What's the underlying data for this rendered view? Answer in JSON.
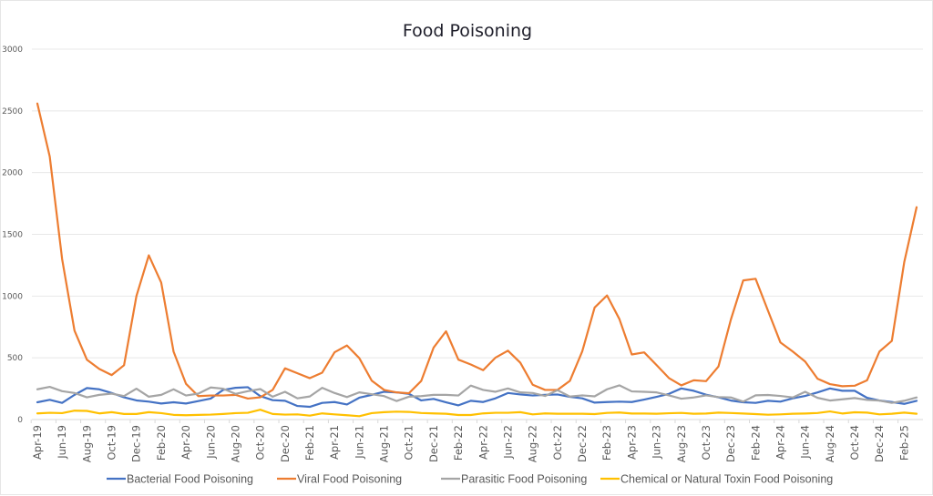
{
  "chart_data": {
    "type": "line",
    "title": "Food Poisoning",
    "xlabel": "",
    "ylabel": "",
    "ylim": [
      0,
      3000
    ],
    "yticks": [
      0,
      500,
      1000,
      1500,
      2000,
      2500,
      3000
    ],
    "grid": true,
    "legend_position": "bottom",
    "x": [
      "Apr-19",
      "May-19",
      "Jun-19",
      "Jul-19",
      "Aug-19",
      "Sep-19",
      "Oct-19",
      "Nov-19",
      "Dec-19",
      "Jan-20",
      "Feb-20",
      "Mar-20",
      "Apr-20",
      "May-20",
      "Jun-20",
      "Jul-20",
      "Aug-20",
      "Sep-20",
      "Oct-20",
      "Nov-20",
      "Dec-20",
      "Jan-21",
      "Feb-21",
      "Mar-21",
      "Apr-21",
      "May-21",
      "Jun-21",
      "Jul-21",
      "Aug-21",
      "Sep-21",
      "Oct-21",
      "Nov-21",
      "Dec-21",
      "Jan-22",
      "Feb-22",
      "Mar-22",
      "Apr-22",
      "May-22",
      "Jun-22",
      "Jul-22",
      "Aug-22",
      "Sep-22",
      "Oct-22",
      "Nov-22",
      "Dec-22",
      "Jan-23",
      "Feb-23",
      "Mar-23",
      "Apr-23",
      "May-23",
      "Jun-23",
      "Jul-23",
      "Aug-23",
      "Sep-23",
      "Oct-23",
      "Nov-23",
      "Dec-23",
      "Jan-24",
      "Feb-24",
      "Mar-24",
      "Apr-24",
      "May-24",
      "Jun-24",
      "Jul-24",
      "Aug-24",
      "Sep-24",
      "Oct-24",
      "Nov-24",
      "Dec-24",
      "Jan-25",
      "Feb-25",
      "Mar-25"
    ],
    "xtick_labels": [
      "Apr-19",
      "Jun-19",
      "Aug-19",
      "Oct-19",
      "Dec-19",
      "Feb-20",
      "Apr-20",
      "Jun-20",
      "Aug-20",
      "Oct-20",
      "Dec-20",
      "Feb-21",
      "Apr-21",
      "Jun-21",
      "Aug-21",
      "Oct-21",
      "Dec-21",
      "Feb-22",
      "Apr-22",
      "Jun-22",
      "Aug-22",
      "Oct-22",
      "Dec-22",
      "Feb-23",
      "Apr-23",
      "Jun-23",
      "Aug-23",
      "Oct-23",
      "Dec-23",
      "Feb-24",
      "Apr-24",
      "Jun-24",
      "Aug-24",
      "Oct-24",
      "Dec-24",
      "Feb-25"
    ],
    "series": [
      {
        "name": "Bacterial Food Poisoning",
        "color": "#4472C4",
        "values": [
          140,
          160,
          135,
          200,
          255,
          245,
          215,
          180,
          155,
          145,
          130,
          140,
          130,
          150,
          170,
          240,
          257,
          262,
          190,
          157,
          152,
          110,
          103,
          135,
          142,
          122,
          177,
          200,
          225,
          220,
          208,
          155,
          167,
          140,
          115,
          152,
          142,
          172,
          215,
          203,
          195,
          200,
          203,
          184,
          172,
          137,
          142,
          145,
          142,
          162,
          184,
          208,
          252,
          233,
          201,
          180,
          154,
          140,
          135,
          152,
          145,
          172,
          191,
          220,
          252,
          233,
          233,
          176,
          154,
          142,
          127,
          152
        ]
      },
      {
        "name": "Viral Food Poisoning",
        "color": "#ED7D31",
        "values": [
          2560,
          2130,
          1300,
          720,
          485,
          410,
          360,
          440,
          1000,
          1330,
          1110,
          550,
          290,
          190,
          195,
          195,
          200,
          170,
          180,
          240,
          415,
          375,
          335,
          380,
          545,
          600,
          497,
          315,
          240,
          220,
          213,
          313,
          583,
          715,
          485,
          446,
          400,
          502,
          558,
          460,
          282,
          240,
          240,
          313,
          552,
          907,
          1005,
          814,
          527,
          544,
          441,
          336,
          277,
          318,
          311,
          430,
          809,
          1127,
          1140,
          882,
          625,
          551,
          470,
          331,
          287,
          270,
          274,
          318,
          551,
          637,
          1274,
          1720
        ]
      },
      {
        "name": "Parasitic Food Poisoning",
        "color": "#A5A5A5",
        "values": [
          245,
          265,
          230,
          215,
          180,
          200,
          210,
          190,
          250,
          185,
          200,
          245,
          195,
          210,
          260,
          250,
          208,
          230,
          247,
          185,
          225,
          172,
          187,
          257,
          215,
          182,
          220,
          205,
          190,
          150,
          185,
          190,
          200,
          200,
          195,
          275,
          240,
          225,
          252,
          220,
          215,
          191,
          238,
          186,
          196,
          188,
          245,
          277,
          228,
          225,
          220,
          196,
          169,
          179,
          196,
          182,
          179,
          145,
          196,
          199,
          191,
          179,
          225,
          176,
          154,
          164,
          174,
          159,
          154,
          135,
          152,
          179
        ]
      },
      {
        "name": "Chemical or Natural Toxin Food Poisoning",
        "color": "#FFC000",
        "values": [
          50,
          55,
          52,
          72,
          70,
          50,
          60,
          45,
          45,
          60,
          52,
          38,
          35,
          38,
          40,
          45,
          52,
          55,
          80,
          45,
          40,
          42,
          32,
          50,
          42,
          35,
          27,
          52,
          60,
          64,
          62,
          53,
          50,
          47,
          37,
          37,
          50,
          55,
          55,
          60,
          42,
          50,
          47,
          47,
          47,
          44,
          54,
          57,
          49,
          49,
          47,
          51,
          54,
          47,
          49,
          56,
          53,
          49,
          44,
          39,
          42,
          47,
          49,
          53,
          66,
          49,
          59,
          56,
          42,
          47,
          56,
          47
        ]
      }
    ]
  }
}
